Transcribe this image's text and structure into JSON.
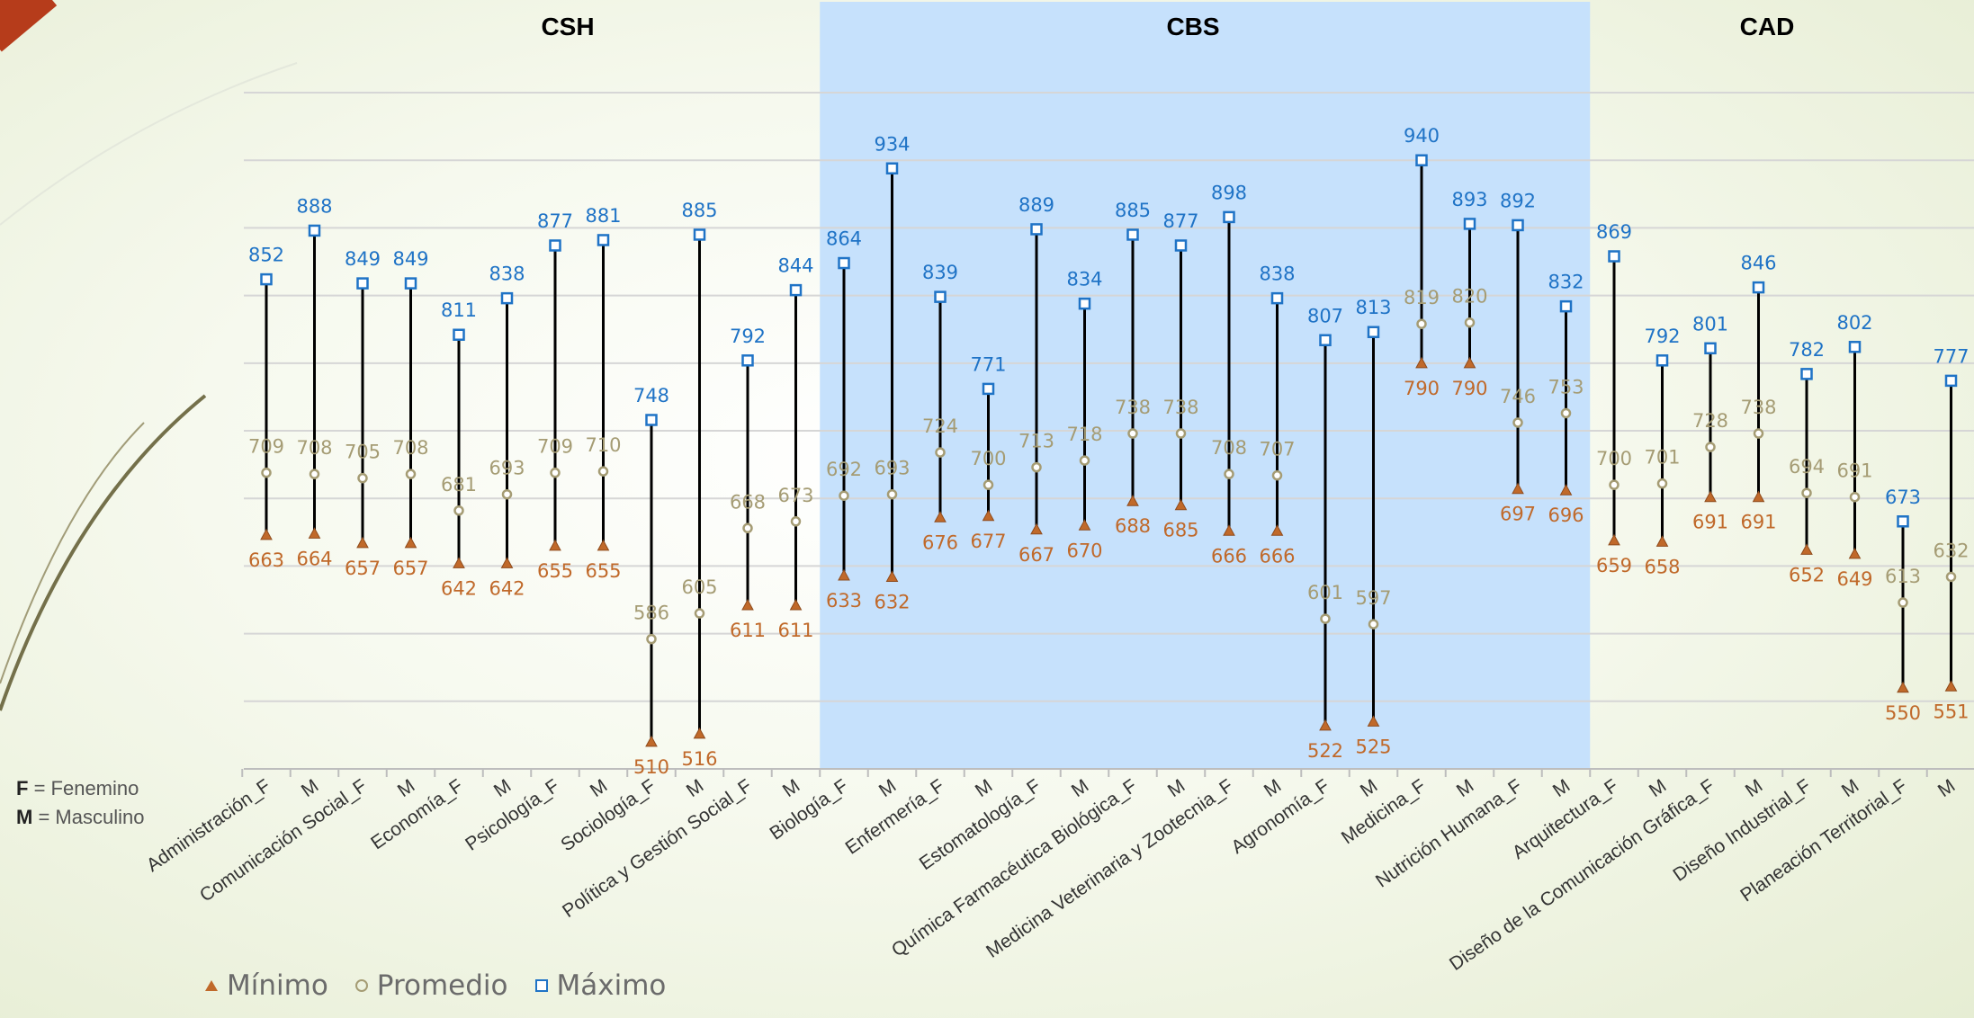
{
  "chart_data": {
    "type": "stock-hilo",
    "groups": [
      {
        "name": "CSH",
        "from": 0,
        "to": 11
      },
      {
        "name": "CBS",
        "from": 12,
        "to": 27
      },
      {
        "name": "CAD",
        "from": 28,
        "to": 35
      }
    ],
    "categories": [
      "Administración_F",
      "M",
      "Comunicación Social_F",
      "M",
      "Economía_F",
      "M",
      "Psicología_F",
      "M",
      "Sociología_F",
      "M",
      "Política y Gestión Social_F",
      "M",
      "Biología_F",
      "M",
      "Enfermería_F",
      "M",
      "Estomatología_F",
      "M",
      "Química Farmacéutica Biológica_F",
      "M",
      "Medicina Veterinaria y Zootecnia_F",
      "M",
      "Agronomía_F",
      "M",
      "Medicina_F",
      "M",
      "Nutrición Humana_F",
      "M",
      "Arquitectura_F",
      "M",
      "Diseño de la Comunicación Gráfica_F",
      "M",
      "Diseño Industrial_F",
      "M",
      "Planeación Territorial_F",
      "M"
    ],
    "series": [
      {
        "name": "Mínimo",
        "values": [
          663,
          664,
          657,
          657,
          642,
          642,
          655,
          655,
          510,
          516,
          611,
          611,
          633,
          632,
          676,
          677,
          667,
          670,
          688,
          685,
          666,
          666,
          522,
          525,
          790,
          790,
          697,
          696,
          659,
          658,
          691,
          691,
          652,
          649,
          550,
          551
        ]
      },
      {
        "name": "Promedio",
        "values": [
          709,
          708,
          705,
          708,
          681,
          693,
          709,
          710,
          586,
          605,
          668,
          673,
          692,
          693,
          724,
          700,
          713,
          718,
          738,
          738,
          708,
          707,
          601,
          597,
          819,
          820,
          746,
          753,
          700,
          701,
          728,
          738,
          694,
          691,
          613,
          632
        ]
      },
      {
        "name": "Máximo",
        "values": [
          852,
          888,
          849,
          849,
          811,
          838,
          877,
          881,
          748,
          885,
          792,
          844,
          864,
          934,
          839,
          771,
          889,
          834,
          885,
          877,
          898,
          838,
          807,
          813,
          940,
          893,
          892,
          832,
          869,
          792,
          801,
          846,
          782,
          802,
          673,
          777
        ]
      }
    ],
    "ylim": [
      490,
      1000
    ],
    "gridlines": [
      490,
      540,
      590,
      640,
      690,
      740,
      790,
      840,
      890,
      940,
      990
    ],
    "highlight_group": "CBS",
    "legend_position": "bottom-left",
    "colors": {
      "min": "#c0692a",
      "avg": "#a59c74",
      "max": "#1f73c6",
      "highlight": "#c6e1fc",
      "grid": "#d6d6d6",
      "line": "#000000"
    }
  },
  "notes": [
    {
      "key": "F",
      "text": "Fenemino"
    },
    {
      "key": "M",
      "text": "Masculino"
    }
  ]
}
